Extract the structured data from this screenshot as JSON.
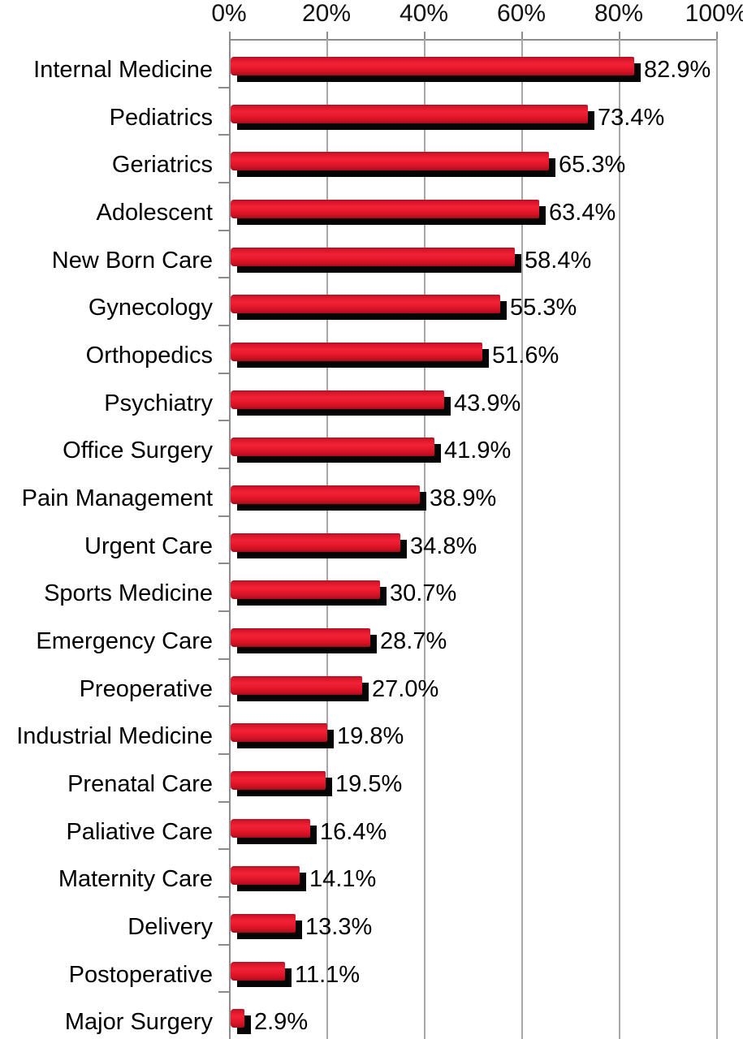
{
  "chart_data": {
    "type": "bar",
    "orientation": "horizontal",
    "title": "",
    "xlabel": "",
    "ylabel": "",
    "xlim": [
      0,
      100
    ],
    "grid": true,
    "legend": false,
    "x_ticks": [
      "0%",
      "20%",
      "40%",
      "60%",
      "80%",
      "100%"
    ],
    "x_tick_values": [
      0,
      20,
      40,
      60,
      80,
      100
    ],
    "categories": [
      "Internal Medicine",
      "Pediatrics",
      "Geriatrics",
      "Adolescent",
      "New Born Care",
      "Gynecology",
      "Orthopedics",
      "Psychiatry",
      "Office Surgery",
      "Pain Management",
      "Urgent Care",
      "Sports Medicine",
      "Emergency Care",
      "Preoperative",
      "Industrial Medicine",
      "Prenatal Care",
      "Paliative Care",
      "Maternity Care",
      "Delivery",
      "Postoperative",
      "Major Surgery"
    ],
    "values": [
      82.9,
      73.4,
      65.3,
      63.4,
      58.4,
      55.3,
      51.6,
      43.9,
      41.9,
      38.9,
      34.8,
      30.7,
      28.7,
      27.0,
      19.8,
      19.5,
      16.4,
      14.1,
      13.3,
      11.1,
      2.9
    ],
    "value_labels": [
      "82.9%",
      "73.4%",
      "65.3%",
      "63.4%",
      "58.4%",
      "55.3%",
      "51.6%",
      "43.9%",
      "41.9%",
      "38.9%",
      "34.8%",
      "30.7%",
      "28.7%",
      "27.0%",
      "19.8%",
      "19.5%",
      "16.4%",
      "14.1%",
      "13.3%",
      "11.1%",
      "2.9%"
    ],
    "colors": {
      "bar_fill": "#e11a2b",
      "bar_shadow": "#060606",
      "gridline": "#a6a6a6",
      "axis_line": "#8c8c8c",
      "text": "#000000",
      "background": "#ffffff"
    }
  }
}
